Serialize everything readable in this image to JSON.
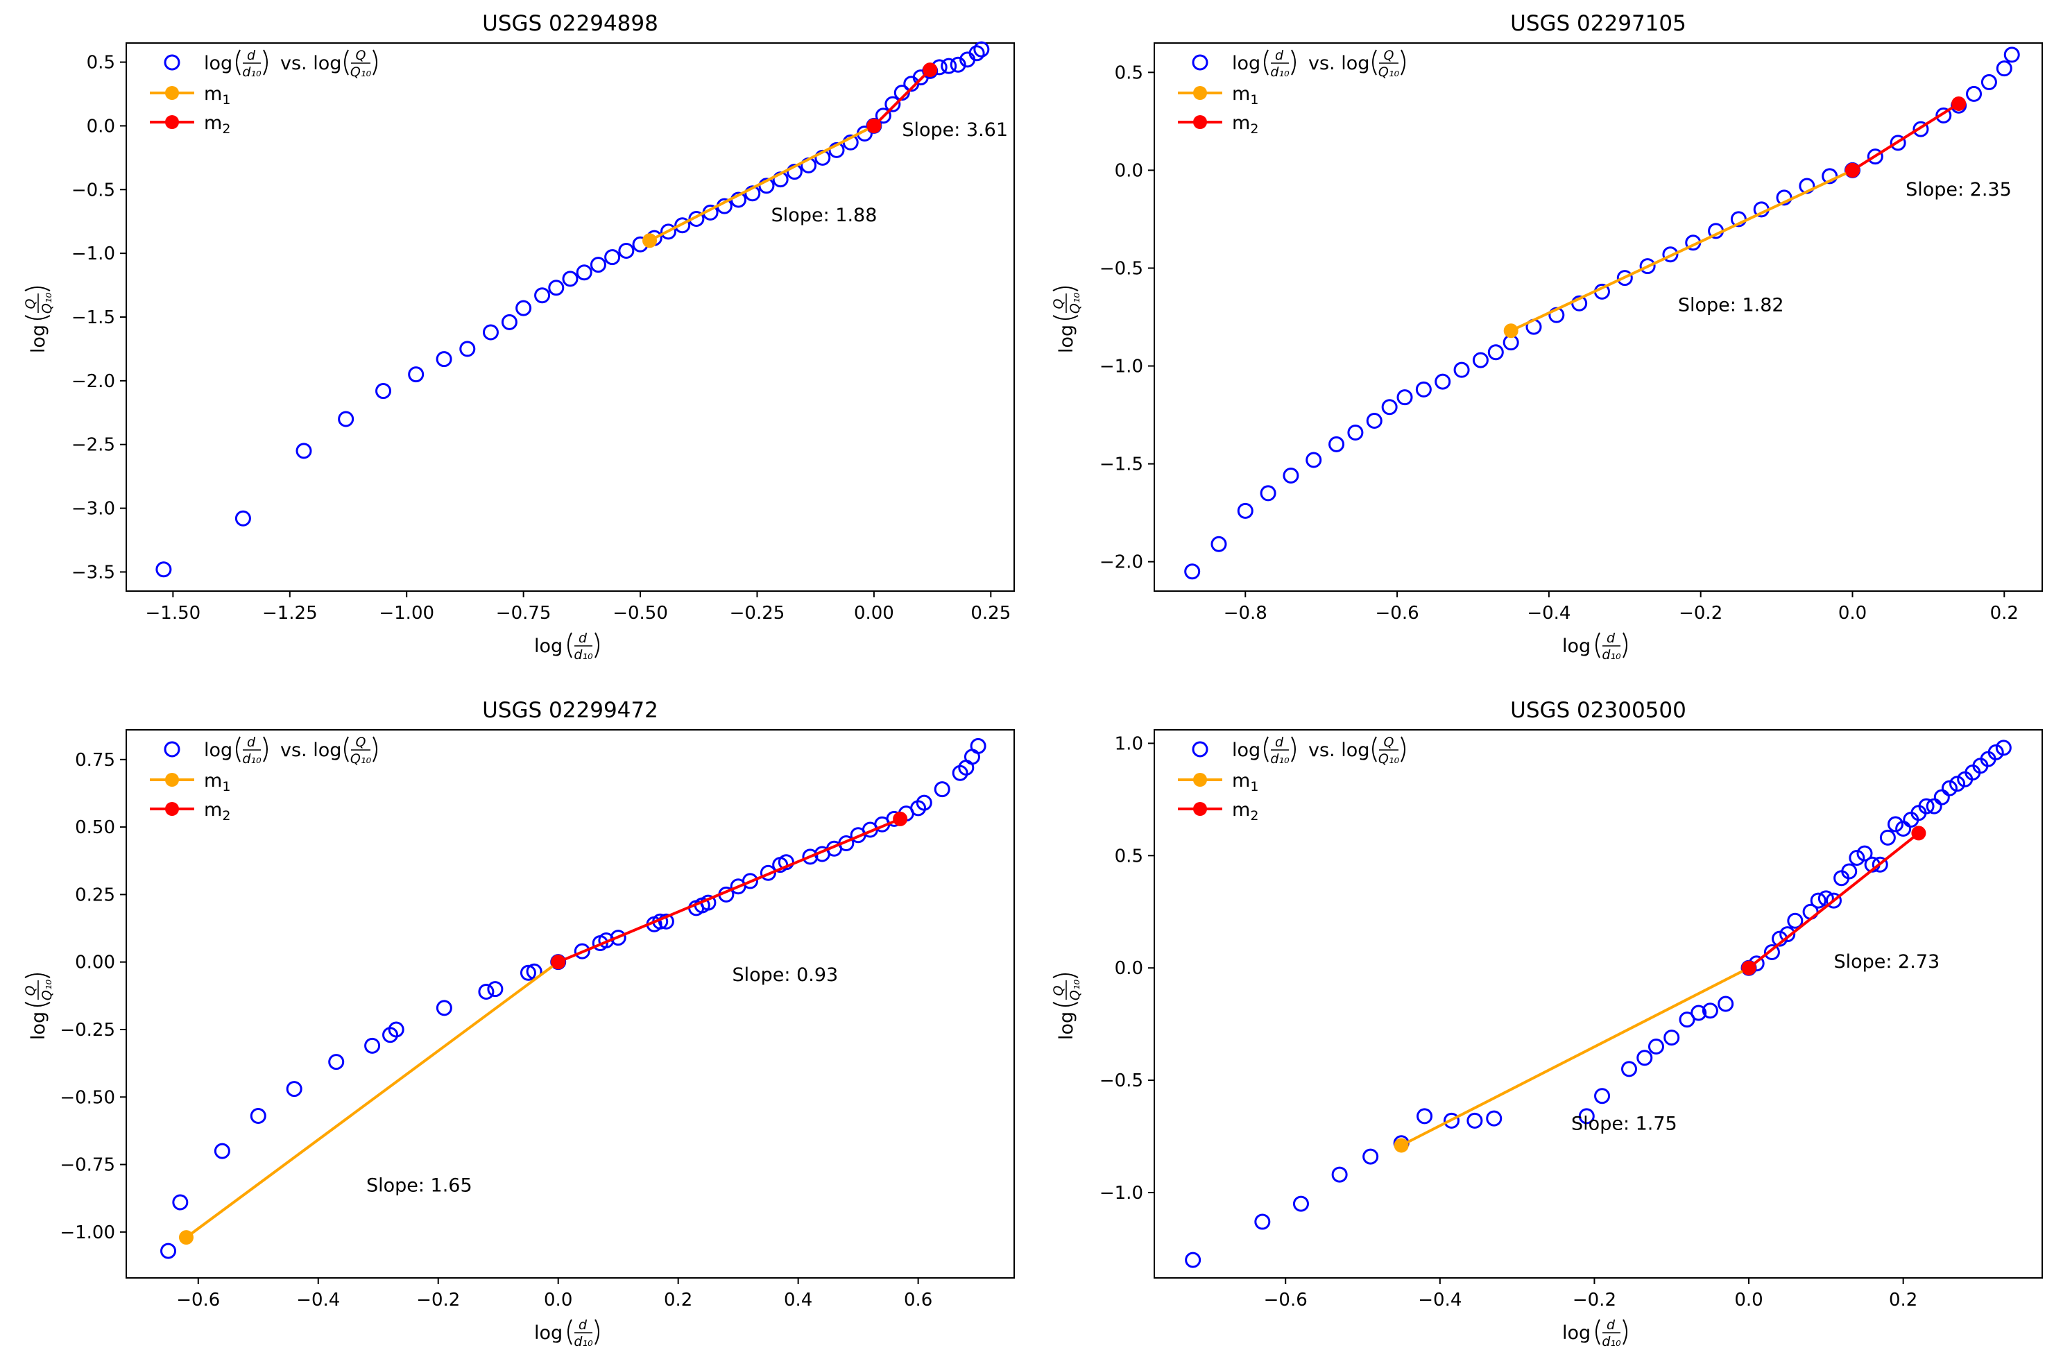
{
  "chart_data": [
    {
      "type": "scatter",
      "title": "USGS 02294898",
      "xlabel": "log(d/d10)",
      "ylabel": "log(Q/Q10)",
      "xlim": [
        -1.6,
        0.3
      ],
      "ylim": [
        -3.65,
        0.65
      ],
      "xticks": [
        -1.5,
        -1.25,
        -1.0,
        -0.75,
        -0.5,
        -0.25,
        0.0,
        0.25
      ],
      "xtick_labels": [
        "−1.50",
        "−1.25",
        "−1.00",
        "−0.75",
        "−0.50",
        "−0.25",
        "0.00",
        "0.25"
      ],
      "yticks": [
        -3.5,
        -3.0,
        -2.5,
        -2.0,
        -1.5,
        -1.0,
        -0.5,
        0.0,
        0.5
      ],
      "ytick_labels": [
        "−3.5",
        "−3.0",
        "−2.5",
        "−2.0",
        "−1.5",
        "−1.0",
        "−0.5",
        "0.0",
        "0.5"
      ],
      "legend": {
        "position": "top-left",
        "entries": [
          "log(d/d10) vs. log(Q/Q10)",
          "m1",
          "m2"
        ]
      },
      "scatter": {
        "name": "log(d/d10) vs. log(Q/Q10)",
        "color": "#0000ff",
        "x": [
          -1.52,
          -1.35,
          -1.22,
          -1.13,
          -1.05,
          -0.98,
          -0.92,
          -0.87,
          -0.82,
          -0.78,
          -0.75,
          -0.71,
          -0.68,
          -0.65,
          -0.62,
          -0.59,
          -0.56,
          -0.53,
          -0.5,
          -0.47,
          -0.44,
          -0.41,
          -0.38,
          -0.35,
          -0.32,
          -0.29,
          -0.26,
          -0.23,
          -0.2,
          -0.17,
          -0.14,
          -0.11,
          -0.08,
          -0.05,
          -0.02,
          0.0,
          0.02,
          0.04,
          0.06,
          0.08,
          0.1,
          0.12,
          0.14,
          0.16,
          0.18,
          0.2,
          0.22,
          0.23
        ],
        "y": [
          -3.48,
          -3.08,
          -2.55,
          -2.3,
          -2.08,
          -1.95,
          -1.83,
          -1.75,
          -1.62,
          -1.54,
          -1.43,
          -1.33,
          -1.27,
          -1.2,
          -1.15,
          -1.09,
          -1.03,
          -0.98,
          -0.93,
          -0.88,
          -0.83,
          -0.78,
          -0.73,
          -0.68,
          -0.63,
          -0.58,
          -0.53,
          -0.47,
          -0.42,
          -0.36,
          -0.31,
          -0.25,
          -0.19,
          -0.13,
          -0.06,
          0.0,
          0.08,
          0.17,
          0.26,
          0.33,
          0.38,
          0.43,
          0.46,
          0.47,
          0.48,
          0.52,
          0.57,
          0.6
        ]
      },
      "m1": {
        "x": [
          -0.48,
          0.0
        ],
        "y": [
          -0.9,
          0.0
        ],
        "color": "#ffa500",
        "slope_label": "Slope: 1.88",
        "label_at": [
          -0.22,
          -0.75
        ]
      },
      "m2": {
        "x": [
          0.0,
          0.12
        ],
        "y": [
          0.0,
          0.44
        ],
        "color": "#ff0000",
        "slope_label": "Slope: 3.61",
        "label_at": [
          0.06,
          -0.08
        ]
      }
    },
    {
      "type": "scatter",
      "title": "USGS 02297105",
      "xlabel": "log(d/d10)",
      "ylabel": "log(Q/Q10)",
      "xlim": [
        -0.92,
        0.25
      ],
      "ylim": [
        -2.15,
        0.65
      ],
      "xticks": [
        -0.8,
        -0.6,
        -0.4,
        -0.2,
        0.0,
        0.2
      ],
      "xtick_labels": [
        "−0.8",
        "−0.6",
        "−0.4",
        "−0.2",
        "0.0",
        "0.2"
      ],
      "yticks": [
        -2.0,
        -1.5,
        -1.0,
        -0.5,
        0.0,
        0.5
      ],
      "ytick_labels": [
        "−2.0",
        "−1.5",
        "−1.0",
        "−0.5",
        "0.0",
        "0.5"
      ],
      "legend": {
        "position": "top-left",
        "entries": [
          "log(d/d10) vs. log(Q/Q10)",
          "m1",
          "m2"
        ]
      },
      "scatter": {
        "name": "log(d/d10) vs. log(Q/Q10)",
        "color": "#0000ff",
        "x": [
          -0.87,
          -0.835,
          -0.8,
          -0.77,
          -0.74,
          -0.71,
          -0.68,
          -0.655,
          -0.63,
          -0.61,
          -0.59,
          -0.565,
          -0.54,
          -0.515,
          -0.49,
          -0.47,
          -0.45,
          -0.42,
          -0.39,
          -0.36,
          -0.33,
          -0.3,
          -0.27,
          -0.24,
          -0.21,
          -0.18,
          -0.15,
          -0.12,
          -0.09,
          -0.06,
          -0.03,
          0.0,
          0.03,
          0.06,
          0.09,
          0.12,
          0.14,
          0.16,
          0.18,
          0.2,
          0.21
        ],
        "y": [
          -2.05,
          -1.91,
          -1.74,
          -1.65,
          -1.56,
          -1.48,
          -1.4,
          -1.34,
          -1.28,
          -1.21,
          -1.16,
          -1.12,
          -1.08,
          -1.02,
          -0.97,
          -0.93,
          -0.88,
          -0.8,
          -0.74,
          -0.68,
          -0.62,
          -0.55,
          -0.49,
          -0.43,
          -0.37,
          -0.31,
          -0.25,
          -0.2,
          -0.14,
          -0.08,
          -0.03,
          0.0,
          0.07,
          0.14,
          0.21,
          0.28,
          0.33,
          0.39,
          0.45,
          0.52,
          0.59
        ]
      },
      "m1": {
        "x": [
          -0.45,
          0.0
        ],
        "y": [
          -0.82,
          0.0
        ],
        "color": "#ffa500",
        "slope_label": "Slope: 1.82",
        "label_at": [
          -0.23,
          -0.72
        ]
      },
      "m2": {
        "x": [
          0.0,
          0.14
        ],
        "y": [
          0.0,
          0.34
        ],
        "color": "#ff0000",
        "slope_label": "Slope: 2.35",
        "label_at": [
          0.07,
          -0.13
        ]
      }
    },
    {
      "type": "scatter",
      "title": "USGS 02299472",
      "xlabel": "log(d/d10)",
      "ylabel": "log(Q/Q10)",
      "xlim": [
        -0.72,
        0.76
      ],
      "ylim": [
        -1.17,
        0.86
      ],
      "xticks": [
        -0.6,
        -0.4,
        -0.2,
        0.0,
        0.2,
        0.4,
        0.6
      ],
      "xtick_labels": [
        "−0.6",
        "−0.4",
        "−0.2",
        "0.0",
        "0.2",
        "0.4",
        "0.6"
      ],
      "yticks": [
        -1.0,
        -0.75,
        -0.5,
        -0.25,
        0.0,
        0.25,
        0.5,
        0.75
      ],
      "ytick_labels": [
        "−1.00",
        "−0.75",
        "−0.50",
        "−0.25",
        "0.00",
        "0.25",
        "0.50",
        "0.75"
      ],
      "legend": {
        "position": "top-left",
        "entries": [
          "log(d/d10) vs. log(Q/Q10)",
          "m1",
          "m2"
        ]
      },
      "scatter": {
        "name": "log(d/d10) vs. log(Q/Q10)",
        "color": "#0000ff",
        "x": [
          -0.65,
          -0.63,
          -0.56,
          -0.5,
          -0.44,
          -0.37,
          -0.31,
          -0.28,
          -0.27,
          -0.19,
          -0.12,
          -0.105,
          -0.05,
          -0.04,
          0.0,
          0.04,
          0.07,
          0.08,
          0.1,
          0.16,
          0.17,
          0.18,
          0.23,
          0.24,
          0.25,
          0.28,
          0.3,
          0.32,
          0.35,
          0.37,
          0.38,
          0.42,
          0.44,
          0.46,
          0.48,
          0.5,
          0.52,
          0.54,
          0.56,
          0.58,
          0.6,
          0.61,
          0.64,
          0.67,
          0.68,
          0.69,
          0.7
        ],
        "y": [
          -1.07,
          -0.89,
          -0.7,
          -0.57,
          -0.47,
          -0.37,
          -0.31,
          -0.27,
          -0.25,
          -0.17,
          -0.11,
          -0.1,
          -0.04,
          -0.035,
          0.0,
          0.04,
          0.07,
          0.08,
          0.09,
          0.14,
          0.15,
          0.15,
          0.2,
          0.21,
          0.22,
          0.25,
          0.28,
          0.3,
          0.33,
          0.36,
          0.37,
          0.39,
          0.4,
          0.42,
          0.44,
          0.47,
          0.49,
          0.51,
          0.53,
          0.55,
          0.57,
          0.59,
          0.64,
          0.7,
          0.72,
          0.76,
          0.8
        ]
      },
      "m1": {
        "x": [
          -0.62,
          0.0
        ],
        "y": [
          -1.02,
          0.0
        ],
        "color": "#ffa500",
        "slope_label": "Slope: 1.65",
        "label_at": [
          -0.32,
          -0.85
        ]
      },
      "m2": {
        "x": [
          0.0,
          0.57
        ],
        "y": [
          0.0,
          0.53
        ],
        "color": "#ff0000",
        "slope_label": "Slope: 0.93",
        "label_at": [
          0.29,
          -0.07
        ]
      }
    },
    {
      "type": "scatter",
      "title": "USGS 02300500",
      "xlabel": "log(d/d10)",
      "ylabel": "log(Q/Q10)",
      "xlim": [
        -0.77,
        0.38
      ],
      "ylim": [
        -1.38,
        1.06
      ],
      "xticks": [
        -0.6,
        -0.4,
        -0.2,
        0.0,
        0.2
      ],
      "xtick_labels": [
        "−0.6",
        "−0.4",
        "−0.2",
        "0.0",
        "0.2"
      ],
      "yticks": [
        -1.0,
        -0.5,
        0.0,
        0.5,
        1.0
      ],
      "ytick_labels": [
        "−1.0",
        "−0.5",
        "0.0",
        "0.5",
        "1.0"
      ],
      "legend": {
        "position": "top-left",
        "entries": [
          "log(d/d10) vs. log(Q/Q10)",
          "m1",
          "m2"
        ]
      },
      "scatter": {
        "name": "log(d/d10) vs. log(Q/Q10)",
        "color": "#0000ff",
        "x": [
          -0.72,
          -0.63,
          -0.58,
          -0.53,
          -0.49,
          -0.45,
          -0.42,
          -0.385,
          -0.355,
          -0.33,
          -0.21,
          -0.19,
          -0.155,
          -0.135,
          -0.12,
          -0.1,
          -0.08,
          -0.065,
          -0.05,
          -0.03,
          0.0,
          0.01,
          0.03,
          0.04,
          0.05,
          0.06,
          0.08,
          0.09,
          0.1,
          0.11,
          0.12,
          0.13,
          0.14,
          0.15,
          0.16,
          0.17,
          0.18,
          0.19,
          0.2,
          0.21,
          0.22,
          0.23,
          0.24,
          0.25,
          0.26,
          0.27,
          0.28,
          0.29,
          0.3,
          0.31,
          0.32,
          0.33
        ],
        "y": [
          -1.3,
          -1.13,
          -1.05,
          -0.92,
          -0.84,
          -0.78,
          -0.66,
          -0.68,
          -0.68,
          -0.67,
          -0.66,
          -0.57,
          -0.45,
          -0.4,
          -0.35,
          -0.31,
          -0.23,
          -0.2,
          -0.19,
          -0.16,
          0.0,
          0.02,
          0.07,
          0.13,
          0.15,
          0.21,
          0.25,
          0.3,
          0.31,
          0.3,
          0.4,
          0.43,
          0.49,
          0.51,
          0.46,
          0.46,
          0.58,
          0.64,
          0.62,
          0.66,
          0.69,
          0.72,
          0.72,
          0.76,
          0.8,
          0.82,
          0.84,
          0.87,
          0.9,
          0.93,
          0.96,
          0.98
        ]
      },
      "m1": {
        "x": [
          -0.45,
          0.0
        ],
        "y": [
          -0.79,
          0.0
        ],
        "color": "#ffa500",
        "slope_label": "Slope: 1.75",
        "label_at": [
          -0.23,
          -0.72
        ]
      },
      "m2": {
        "x": [
          0.0,
          0.22
        ],
        "y": [
          0.0,
          0.6
        ],
        "color": "#ff0000",
        "slope_label": "Slope: 2.73",
        "label_at": [
          0.11,
          0.0
        ]
      }
    }
  ]
}
